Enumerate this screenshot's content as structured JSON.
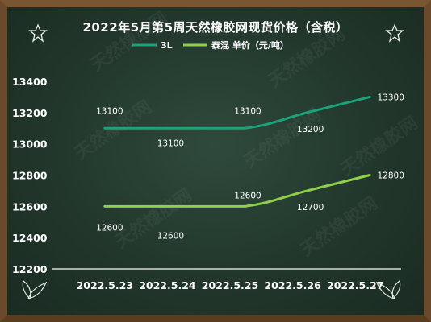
{
  "chart_data": {
    "type": "line",
    "title": "2022年5月第5周天然橡胶网现货价格（含税）",
    "categories": [
      "2022.5.23",
      "2022.5.24",
      "2022.5.25",
      "2022.5.26",
      "2022.5.27"
    ],
    "yticks": [
      12200,
      12400,
      12600,
      12800,
      13000,
      13200,
      13400
    ],
    "ylim": [
      12200,
      13400
    ],
    "grid": false,
    "legend_position": "top-center",
    "series": [
      {
        "name": "3L",
        "color": "#1aa37a",
        "values": [
          13100,
          13100,
          13100,
          13200,
          13300
        ],
        "labels": [
          "13100",
          "13100",
          "13100",
          "13200",
          "13300"
        ]
      },
      {
        "name": "泰混 单价（元/吨）",
        "color": "#8ed04a",
        "values": [
          12600,
          12600,
          12600,
          12700,
          12800
        ],
        "labels": [
          "12600",
          "12600",
          "12600",
          "12700",
          "12800"
        ]
      }
    ],
    "watermark": "天然橡胶网"
  }
}
